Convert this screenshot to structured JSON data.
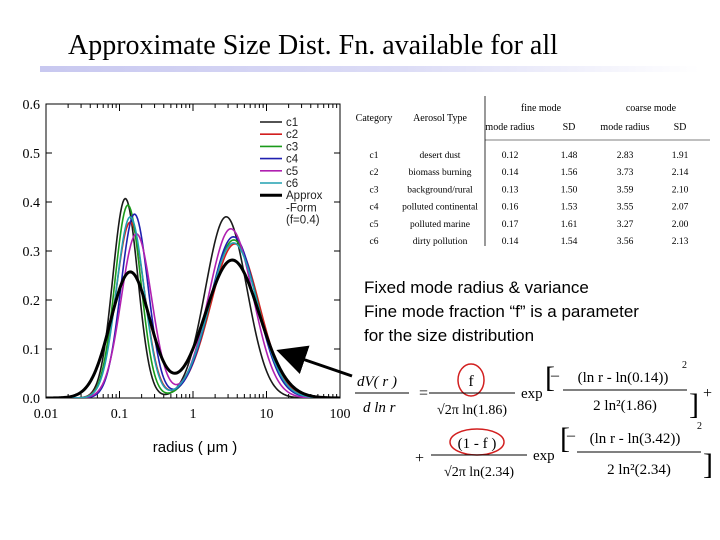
{
  "title": "Approximate Size Dist. Fn. available for all",
  "note_lines": [
    "Fixed mode radius & variance",
    "Fine mode fraction “f” is a parameter",
    "for the size distribution"
  ],
  "chart_data": {
    "type": "line",
    "xscale": "log",
    "xlim": [
      0.01,
      100
    ],
    "ylim": [
      0.0,
      0.6
    ],
    "xlabel": "radius ( μm )",
    "ylabel": "",
    "x_ticks": [
      "0.01",
      "0.1",
      "1",
      "10",
      "100"
    ],
    "y_ticks": [
      "0.0",
      "0.1",
      "0.2",
      "0.3",
      "0.4",
      "0.5",
      "0.6"
    ],
    "legend_position": "top-right",
    "series": [
      {
        "name": "c1",
        "color": "#1a1a1a",
        "f": 0.4,
        "fine": {
          "r": 0.12,
          "sd": 1.48
        },
        "coarse": {
          "r": 2.83,
          "sd": 1.91
        }
      },
      {
        "name": "c2",
        "color": "#d21f1f",
        "f": 0.4,
        "fine": {
          "r": 0.14,
          "sd": 1.56
        },
        "coarse": {
          "r": 3.73,
          "sd": 2.14
        }
      },
      {
        "name": "c3",
        "color": "#1a9a1a",
        "f": 0.4,
        "fine": {
          "r": 0.13,
          "sd": 1.5
        },
        "coarse": {
          "r": 3.59,
          "sd": 2.1
        }
      },
      {
        "name": "c4",
        "color": "#2020b0",
        "f": 0.4,
        "fine": {
          "r": 0.16,
          "sd": 1.53
        },
        "coarse": {
          "r": 3.55,
          "sd": 2.07
        }
      },
      {
        "name": "c5",
        "color": "#b020b0",
        "f": 0.4,
        "fine": {
          "r": 0.17,
          "sd": 1.61
        },
        "coarse": {
          "r": 3.27,
          "sd": 2.0
        }
      },
      {
        "name": "c6",
        "color": "#20a0b0",
        "f": 0.4,
        "fine": {
          "r": 0.14,
          "sd": 1.54
        },
        "coarse": {
          "r": 3.56,
          "sd": 2.13
        }
      },
      {
        "name": "Approx -Form (f=0.4)",
        "color": "#000000",
        "bold": true,
        "f": 0.4,
        "fine": {
          "r": 0.14,
          "sd": 1.86
        },
        "coarse": {
          "r": 3.42,
          "sd": 2.34
        }
      }
    ],
    "legend_lines": [
      {
        "label": "c1",
        "color": "#1a1a1a"
      },
      {
        "label": "c2",
        "color": "#d21f1f"
      },
      {
        "label": "c3",
        "color": "#1a9a1a"
      },
      {
        "label": "c4",
        "color": "#2020b0"
      },
      {
        "label": "c5",
        "color": "#b020b0"
      },
      {
        "label": "c6",
        "color": "#20a0b0"
      },
      {
        "label": "Approx",
        "color": "#000000",
        "bold": true
      },
      {
        "label": "-Form",
        "color": null
      },
      {
        "label": "(f=0.4)",
        "color": null
      }
    ]
  },
  "table": {
    "col_category": "Category",
    "col_aerosol": "Aerosol Type",
    "group_fine": "fine mode",
    "group_coarse": "coarse mode",
    "sub_headers": [
      "mode radius",
      "SD",
      "mode radius",
      "SD"
    ],
    "rows": [
      [
        "c1",
        "desert dust",
        "0.12",
        "1.48",
        "2.83",
        "1.91"
      ],
      [
        "c2",
        "biomass burning",
        "0.14",
        "1.56",
        "3.73",
        "2.14"
      ],
      [
        "c3",
        "background/rural",
        "0.13",
        "1.50",
        "3.59",
        "2.10"
      ],
      [
        "c4",
        "polluted continental",
        "0.16",
        "1.53",
        "3.55",
        "2.07"
      ],
      [
        "c5",
        "polluted marine",
        "0.17",
        "1.61",
        "3.27",
        "2.00"
      ],
      [
        "c6",
        "dirty pollution",
        "0.14",
        "1.54",
        "3.56",
        "2.13"
      ]
    ]
  },
  "formula": {
    "lhs_num": "dV( r )",
    "lhs_den": "d ln r",
    "eq": "=",
    "term1_coef": "f",
    "term1_den": "√2π ln(1.86)",
    "exp": "exp",
    "term1_exp_num": "(ln r - ln(0.14))",
    "term1_exp_den": "2 ln²(1.86)",
    "plus": "+",
    "term2_coef": "(1 - f )",
    "term2_den": "√2π ln(2.34)",
    "term2_exp_num": "(ln r - ln(3.42))",
    "term2_exp_den": "2 ln²(2.34)",
    "square": "2",
    "minus": "–"
  }
}
